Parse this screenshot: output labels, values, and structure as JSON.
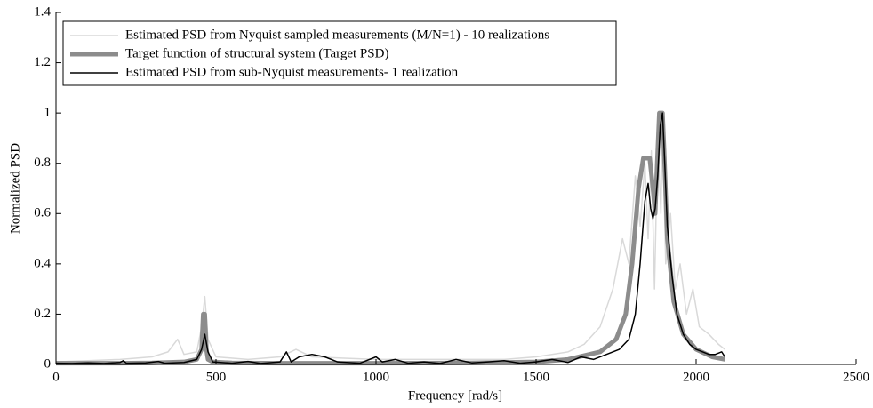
{
  "chart_data": {
    "type": "line",
    "xlabel": "Frequency [rad/s]",
    "ylabel": "Normalized PSD",
    "xlim": [
      0,
      2500
    ],
    "xticks": [
      0,
      500,
      1000,
      1500,
      2000,
      2500
    ],
    "ylim": [
      0,
      1.4
    ],
    "yticks": [
      0,
      0.2,
      0.4,
      0.6,
      0.8,
      1,
      1.2,
      1.4
    ],
    "legend": "upper left",
    "series": [
      {
        "name": "Estimated PSD from Nyquist sampled measurements (M/N=1) - 10 realizations",
        "color": "#d9d9d9",
        "linewidth": 1.5,
        "x": [
          0,
          100,
          200,
          300,
          350,
          380,
          400,
          440,
          455,
          465,
          475,
          500,
          600,
          700,
          750,
          800,
          1000,
          1200,
          1400,
          1500,
          1600,
          1650,
          1700,
          1740,
          1770,
          1790,
          1810,
          1825,
          1840,
          1850,
          1860,
          1870,
          1880,
          1890,
          1895,
          1905,
          1920,
          1935,
          1950,
          1970,
          1990,
          2010,
          2040,
          2070,
          2090
        ],
        "values": [
          0.01,
          0.015,
          0.02,
          0.03,
          0.05,
          0.1,
          0.04,
          0.05,
          0.15,
          0.27,
          0.1,
          0.03,
          0.02,
          0.03,
          0.06,
          0.03,
          0.02,
          0.02,
          0.02,
          0.03,
          0.05,
          0.08,
          0.15,
          0.3,
          0.5,
          0.4,
          0.75,
          0.55,
          0.8,
          0.5,
          0.85,
          0.3,
          0.9,
          0.6,
          0.97,
          0.4,
          0.6,
          0.3,
          0.4,
          0.2,
          0.3,
          0.15,
          0.12,
          0.08,
          0.06
        ]
      },
      {
        "name": "Target function of structural system (Target PSD)",
        "color": "#8c8c8c",
        "linewidth": 5,
        "x": [
          0,
          100,
          200,
          300,
          400,
          440,
          455,
          460,
          465,
          470,
          475,
          490,
          550,
          700,
          1000,
          1300,
          1500,
          1600,
          1700,
          1750,
          1780,
          1800,
          1820,
          1835,
          1845,
          1855,
          1865,
          1872,
          1880,
          1885,
          1890,
          1895,
          1900,
          1910,
          1930,
          1960,
          2000,
          2050,
          2090
        ],
        "values": [
          0.005,
          0.005,
          0.005,
          0.006,
          0.01,
          0.02,
          0.06,
          0.2,
          0.2,
          0.06,
          0.02,
          0.01,
          0.006,
          0.005,
          0.005,
          0.006,
          0.01,
          0.02,
          0.05,
          0.1,
          0.2,
          0.4,
          0.7,
          0.82,
          0.82,
          0.82,
          0.7,
          0.6,
          0.85,
          1,
          1,
          1,
          0.85,
          0.5,
          0.25,
          0.12,
          0.06,
          0.03,
          0.02
        ]
      },
      {
        "name": "Estimated PSD from sub-Nyquist measurements- 1 realization",
        "color": "#000000",
        "linewidth": 1.5,
        "x": [
          0,
          50,
          100,
          150,
          200,
          210,
          220,
          280,
          320,
          340,
          400,
          440,
          455,
          465,
          475,
          490,
          550,
          600,
          640,
          700,
          720,
          735,
          760,
          800,
          840,
          880,
          950,
          1000,
          1020,
          1060,
          1100,
          1150,
          1200,
          1250,
          1300,
          1350,
          1400,
          1450,
          1500,
          1550,
          1600,
          1640,
          1680,
          1720,
          1760,
          1790,
          1810,
          1825,
          1840,
          1850,
          1858,
          1865,
          1872,
          1880,
          1888,
          1895,
          1902,
          1910,
          1925,
          1940,
          1960,
          1980,
          2000,
          2020,
          2040,
          2060,
          2080,
          2090
        ],
        "values": [
          0.005,
          0.004,
          0.006,
          0.004,
          0.008,
          0.015,
          0.005,
          0.006,
          0.012,
          0.005,
          0.008,
          0.02,
          0.06,
          0.12,
          0.05,
          0.01,
          0.005,
          0.012,
          0.004,
          0.01,
          0.05,
          0.01,
          0.03,
          0.04,
          0.03,
          0.01,
          0.005,
          0.03,
          0.01,
          0.02,
          0.005,
          0.01,
          0.004,
          0.02,
          0.006,
          0.01,
          0.015,
          0.005,
          0.01,
          0.02,
          0.008,
          0.03,
          0.02,
          0.04,
          0.06,
          0.1,
          0.2,
          0.4,
          0.65,
          0.72,
          0.62,
          0.58,
          0.62,
          0.75,
          0.95,
          1,
          0.8,
          0.55,
          0.35,
          0.2,
          0.12,
          0.08,
          0.06,
          0.05,
          0.04,
          0.04,
          0.05,
          0.03
        ]
      }
    ]
  }
}
